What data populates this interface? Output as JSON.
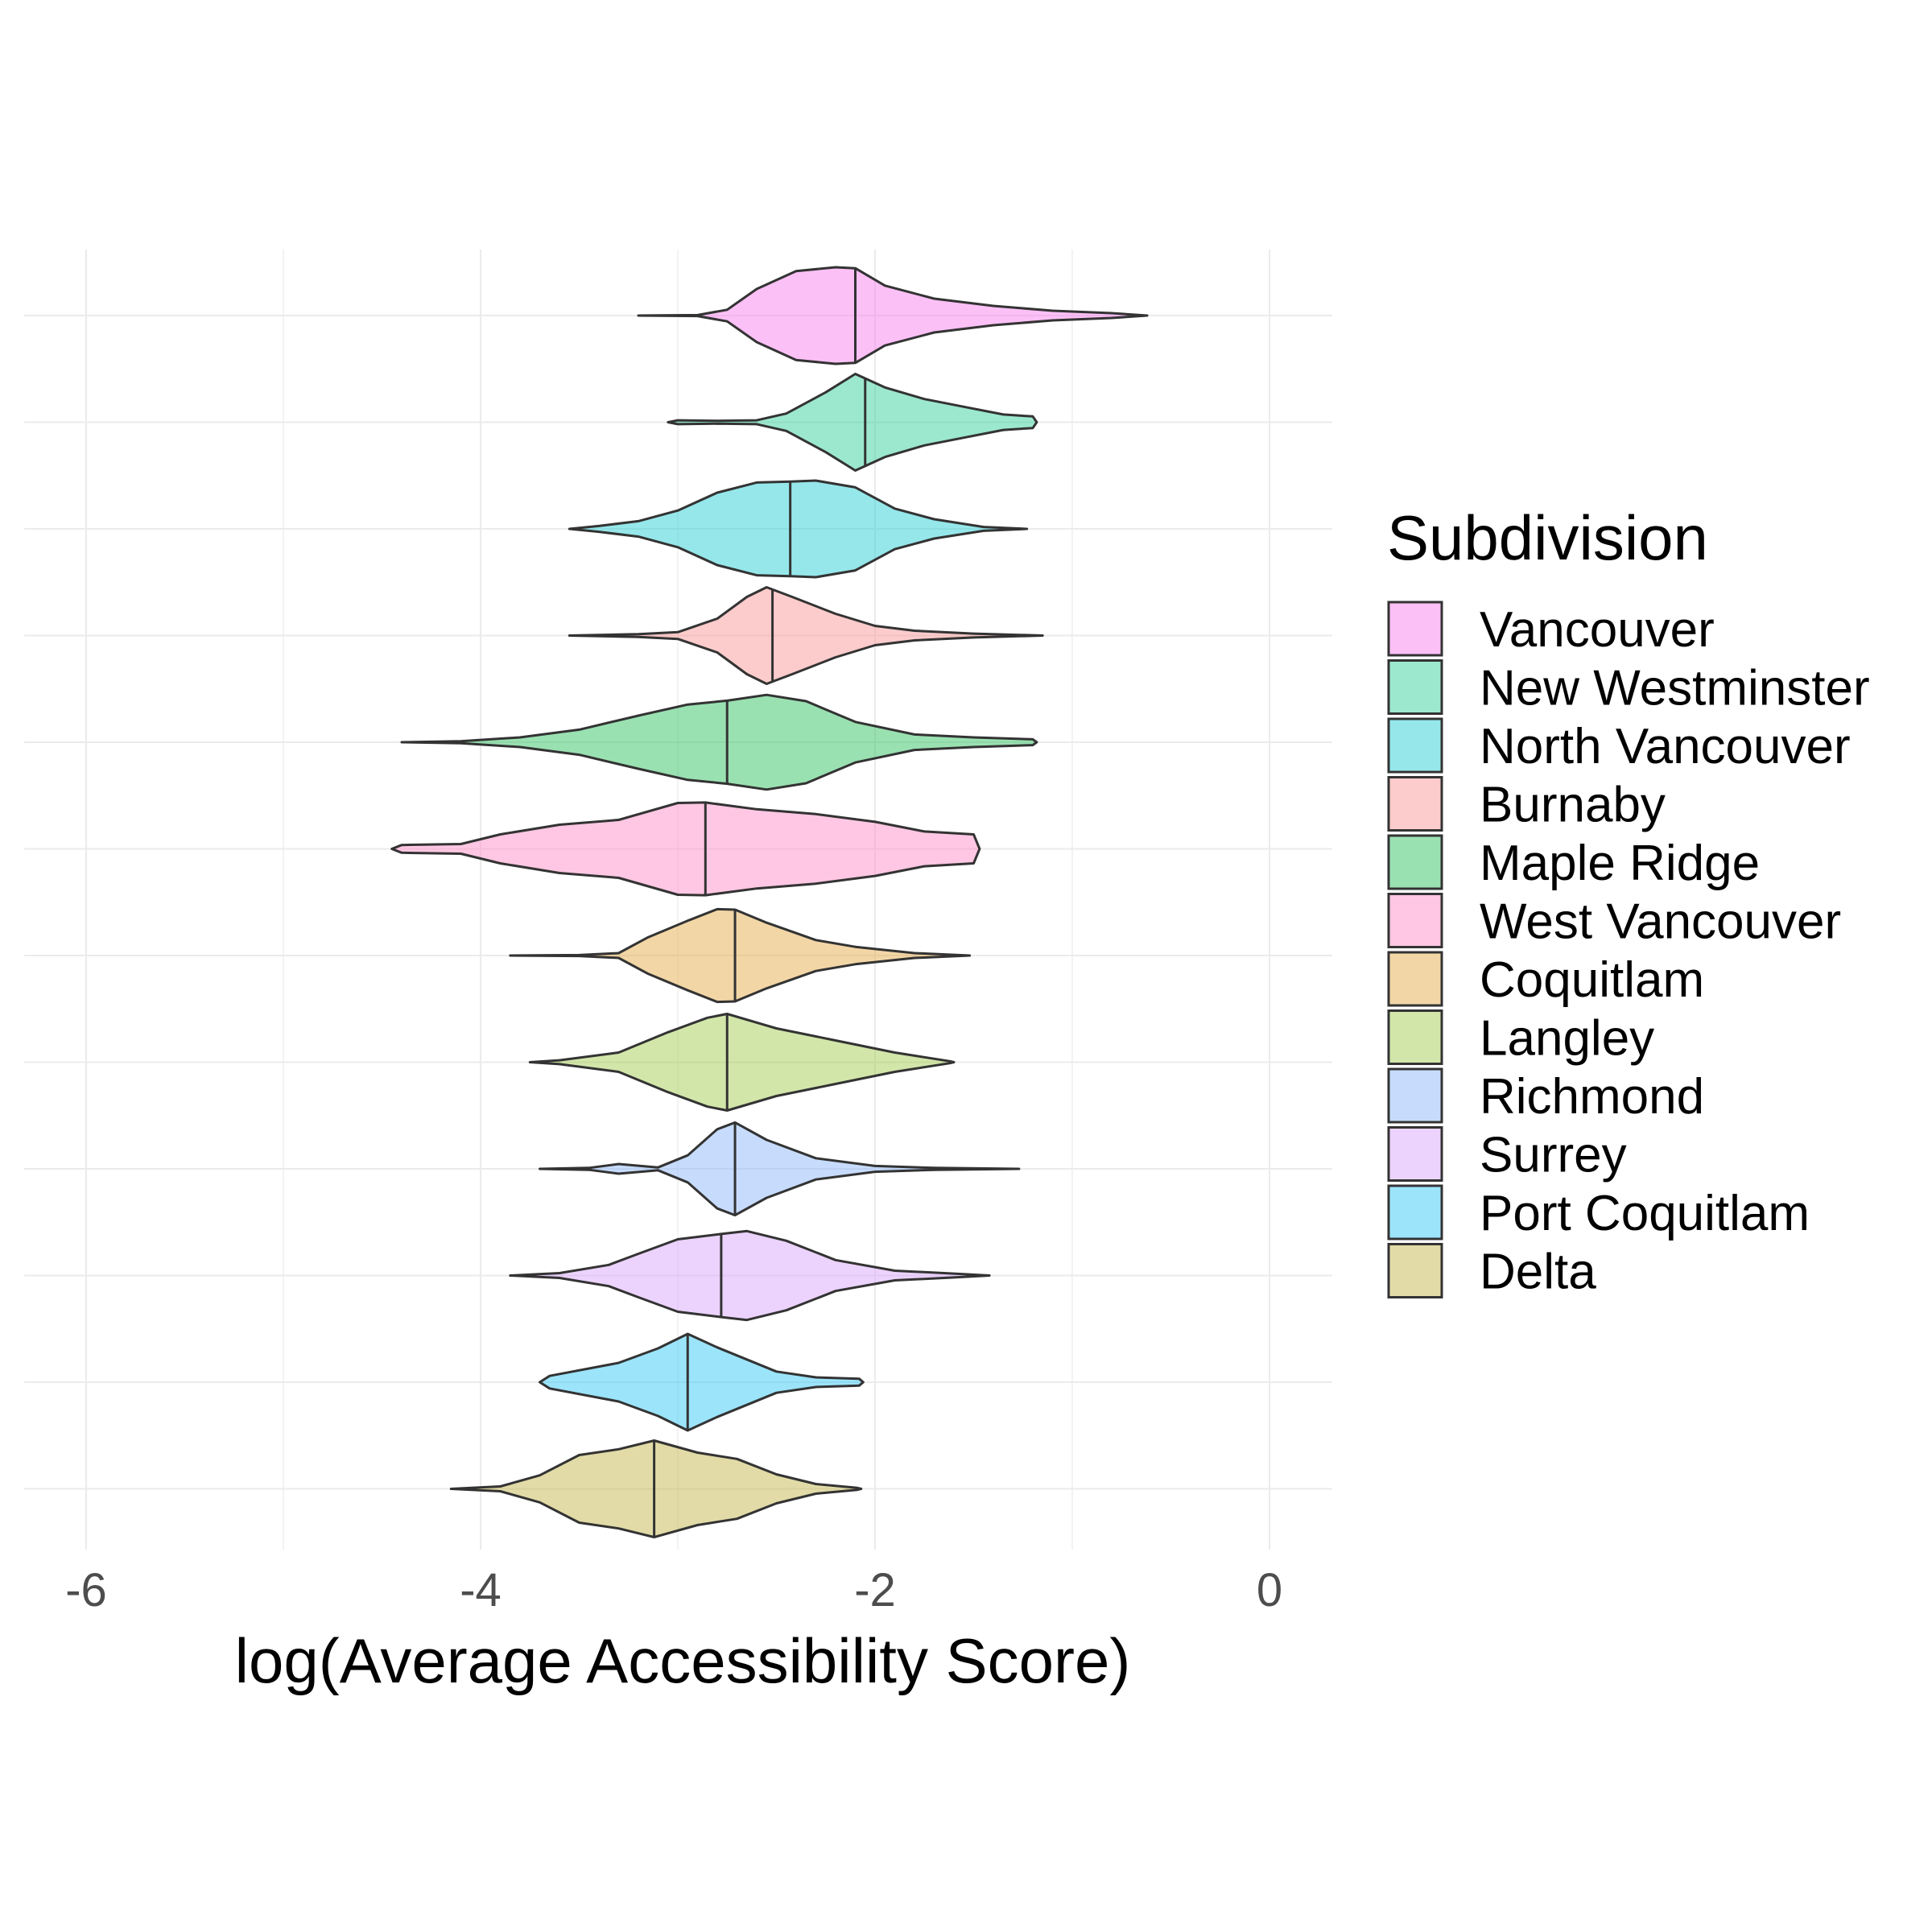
{
  "chart_data": {
    "type": "violin",
    "orientation": "horizontal",
    "title": "",
    "xlabel": "log(Average Accessibility Score)",
    "ylabel": "",
    "xlim": [
      -6.3,
      0.3
    ],
    "x_ticks": [
      -6,
      -4,
      -2,
      0
    ],
    "x_tick_labels": [
      "-6",
      "-4",
      "-2",
      "0"
    ],
    "grid": true,
    "legend": {
      "title": "Subdivision",
      "position": "right"
    },
    "series": [
      {
        "name": "Vancouver",
        "color": "#F781EE",
        "median": -2.1,
        "density": [
          [
            -3.2,
            0.0
          ],
          [
            -2.9,
            0.01
          ],
          [
            -2.75,
            0.12
          ],
          [
            -2.6,
            0.55
          ],
          [
            -2.4,
            0.92
          ],
          [
            -2.2,
            1.0
          ],
          [
            -2.1,
            0.98
          ],
          [
            -1.95,
            0.62
          ],
          [
            -1.7,
            0.35
          ],
          [
            -1.4,
            0.2
          ],
          [
            -1.1,
            0.1
          ],
          [
            -0.8,
            0.05
          ],
          [
            -0.62,
            0.0
          ]
        ]
      },
      {
        "name": "New Westminster",
        "color": "#39D19E",
        "median": -2.05,
        "density": [
          [
            -3.05,
            0.0
          ],
          [
            -3.0,
            0.04
          ],
          [
            -2.8,
            0.03
          ],
          [
            -2.6,
            0.04
          ],
          [
            -2.45,
            0.18
          ],
          [
            -2.25,
            0.62
          ],
          [
            -2.1,
            1.0
          ],
          [
            -1.95,
            0.72
          ],
          [
            -1.75,
            0.48
          ],
          [
            -1.55,
            0.32
          ],
          [
            -1.35,
            0.16
          ],
          [
            -1.2,
            0.12
          ],
          [
            -1.18,
            0.0
          ]
        ]
      },
      {
        "name": "North Vancouver",
        "color": "#2DCFD6",
        "median": -2.43,
        "density": [
          [
            -3.55,
            0.0
          ],
          [
            -3.4,
            0.06
          ],
          [
            -3.2,
            0.16
          ],
          [
            -3.0,
            0.38
          ],
          [
            -2.8,
            0.75
          ],
          [
            -2.6,
            0.96
          ],
          [
            -2.43,
            0.98
          ],
          [
            -2.3,
            1.0
          ],
          [
            -2.1,
            0.86
          ],
          [
            -1.9,
            0.42
          ],
          [
            -1.7,
            0.2
          ],
          [
            -1.45,
            0.04
          ],
          [
            -1.23,
            0.0
          ]
        ]
      },
      {
        "name": "Burnaby",
        "color": "#F89A98",
        "median": -2.52,
        "density": [
          [
            -3.55,
            0.0
          ],
          [
            -3.2,
            0.03
          ],
          [
            -3.0,
            0.07
          ],
          [
            -2.8,
            0.35
          ],
          [
            -2.65,
            0.8
          ],
          [
            -2.55,
            1.0
          ],
          [
            -2.42,
            0.8
          ],
          [
            -2.2,
            0.45
          ],
          [
            -2.0,
            0.2
          ],
          [
            -1.8,
            0.1
          ],
          [
            -1.5,
            0.04
          ],
          [
            -1.15,
            0.0
          ]
        ]
      },
      {
        "name": "Maple Ridge",
        "color": "#36C466",
        "median": -2.75,
        "density": [
          [
            -4.4,
            0.0
          ],
          [
            -4.1,
            0.02
          ],
          [
            -3.8,
            0.1
          ],
          [
            -3.5,
            0.26
          ],
          [
            -3.2,
            0.55
          ],
          [
            -2.95,
            0.78
          ],
          [
            -2.75,
            0.86
          ],
          [
            -2.55,
            0.98
          ],
          [
            -2.35,
            0.85
          ],
          [
            -2.1,
            0.42
          ],
          [
            -1.8,
            0.16
          ],
          [
            -1.5,
            0.1
          ],
          [
            -1.2,
            0.06
          ],
          [
            -1.18,
            0.0
          ]
        ]
      },
      {
        "name": "West Vancouver",
        "color": "#FF8FC8",
        "median": -2.86,
        "density": [
          [
            -4.45,
            0.0
          ],
          [
            -4.4,
            0.08
          ],
          [
            -4.1,
            0.1
          ],
          [
            -3.9,
            0.3
          ],
          [
            -3.6,
            0.5
          ],
          [
            -3.3,
            0.6
          ],
          [
            -3.0,
            0.95
          ],
          [
            -2.86,
            0.96
          ],
          [
            -2.6,
            0.82
          ],
          [
            -2.3,
            0.72
          ],
          [
            -2.0,
            0.56
          ],
          [
            -1.75,
            0.36
          ],
          [
            -1.5,
            0.3
          ],
          [
            -1.47,
            0.0
          ]
        ]
      },
      {
        "name": "Coquitlam",
        "color": "#E5AE4D",
        "median": -2.71,
        "density": [
          [
            -3.85,
            0.0
          ],
          [
            -3.5,
            0.01
          ],
          [
            -3.3,
            0.05
          ],
          [
            -3.15,
            0.38
          ],
          [
            -2.95,
            0.72
          ],
          [
            -2.8,
            0.96
          ],
          [
            -2.71,
            0.95
          ],
          [
            -2.55,
            0.68
          ],
          [
            -2.3,
            0.32
          ],
          [
            -2.1,
            0.18
          ],
          [
            -1.8,
            0.05
          ],
          [
            -1.52,
            0.0
          ]
        ]
      },
      {
        "name": "Langley",
        "color": "#A6CD55",
        "median": -2.75,
        "density": [
          [
            -3.75,
            0.0
          ],
          [
            -3.6,
            0.04
          ],
          [
            -3.3,
            0.2
          ],
          [
            -3.05,
            0.62
          ],
          [
            -2.85,
            0.92
          ],
          [
            -2.75,
            1.0
          ],
          [
            -2.5,
            0.7
          ],
          [
            -2.2,
            0.45
          ],
          [
            -1.9,
            0.2
          ],
          [
            -1.62,
            0.02
          ],
          [
            -1.6,
            0.0
          ]
        ]
      },
      {
        "name": "Richmond",
        "color": "#8FB9F9",
        "median": -2.71,
        "density": [
          [
            -3.7,
            0.0
          ],
          [
            -3.45,
            0.02
          ],
          [
            -3.3,
            0.1
          ],
          [
            -3.1,
            0.03
          ],
          [
            -2.95,
            0.28
          ],
          [
            -2.8,
            0.82
          ],
          [
            -2.71,
            0.96
          ],
          [
            -2.55,
            0.6
          ],
          [
            -2.3,
            0.22
          ],
          [
            -2.0,
            0.06
          ],
          [
            -1.7,
            0.02
          ],
          [
            -1.27,
            0.0
          ]
        ]
      },
      {
        "name": "Surrey",
        "color": "#D9A7FC",
        "median": -2.78,
        "density": [
          [
            -3.85,
            0.0
          ],
          [
            -3.6,
            0.05
          ],
          [
            -3.35,
            0.22
          ],
          [
            -3.2,
            0.45
          ],
          [
            -3.0,
            0.75
          ],
          [
            -2.78,
            0.86
          ],
          [
            -2.65,
            0.92
          ],
          [
            -2.45,
            0.72
          ],
          [
            -2.2,
            0.32
          ],
          [
            -1.9,
            0.1
          ],
          [
            -1.6,
            0.04
          ],
          [
            -1.42,
            0.0
          ]
        ]
      },
      {
        "name": "Port Coquitlam",
        "color": "#3AC9F6",
        "median": -2.95,
        "density": [
          [
            -3.7,
            0.0
          ],
          [
            -3.65,
            0.13
          ],
          [
            -3.3,
            0.4
          ],
          [
            -3.1,
            0.7
          ],
          [
            -2.95,
            1.0
          ],
          [
            -2.8,
            0.72
          ],
          [
            -2.5,
            0.22
          ],
          [
            -2.3,
            0.1
          ],
          [
            -2.08,
            0.07
          ],
          [
            -2.06,
            0.0
          ]
        ]
      },
      {
        "name": "Delta",
        "color": "#C6B84F",
        "median": -3.12,
        "density": [
          [
            -4.15,
            0.0
          ],
          [
            -3.9,
            0.05
          ],
          [
            -3.7,
            0.28
          ],
          [
            -3.5,
            0.7
          ],
          [
            -3.3,
            0.82
          ],
          [
            -3.12,
            1.0
          ],
          [
            -2.9,
            0.75
          ],
          [
            -2.7,
            0.62
          ],
          [
            -2.5,
            0.3
          ],
          [
            -2.3,
            0.1
          ],
          [
            -2.09,
            0.02
          ],
          [
            -2.07,
            0.0
          ]
        ]
      }
    ]
  }
}
